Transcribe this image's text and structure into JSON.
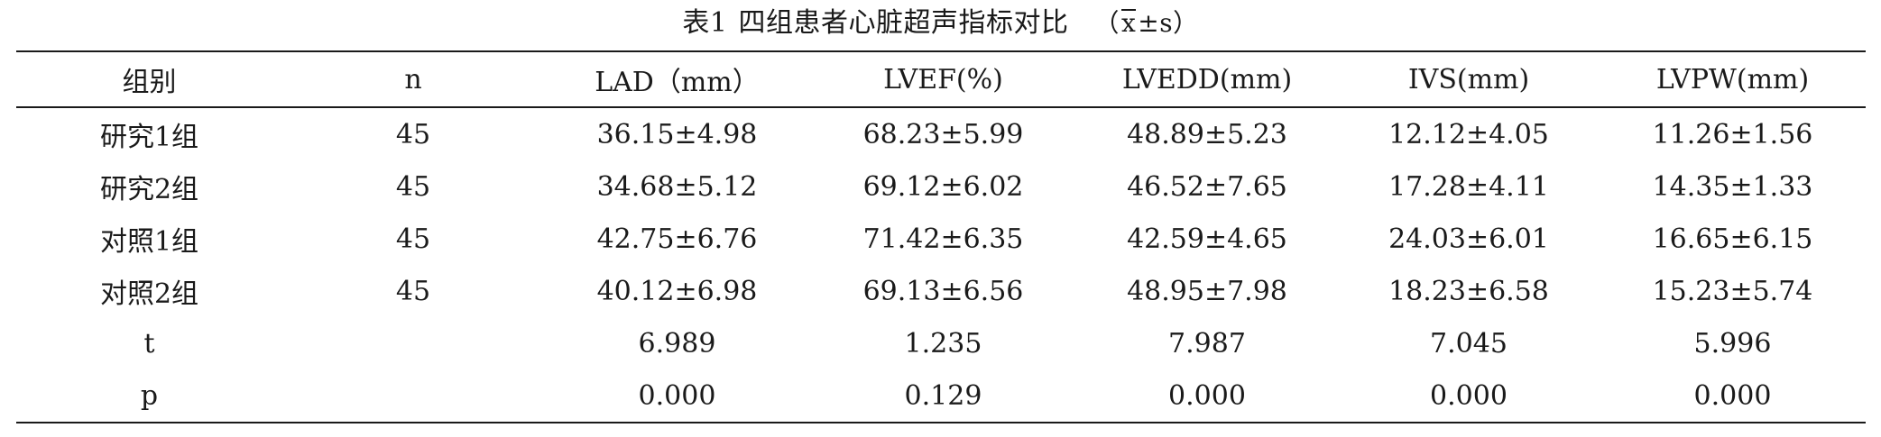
{
  "caption": {
    "label": "表1",
    "title": "四组患者心脏超声指标对比",
    "open_paren": "（",
    "xbar": "x",
    "pm": "±s",
    "close_paren": "）"
  },
  "table": {
    "headers": [
      "组别",
      "n",
      "LAD（mm）",
      "LVEF(%)",
      "LVEDD(mm)",
      "IVS(mm)",
      "LVPW(mm)"
    ],
    "rows": [
      [
        "研究1组",
        "45",
        "36.15±4.98",
        "68.23±5.99",
        "48.89±5.23",
        "12.12±4.05",
        "11.26±1.56"
      ],
      [
        "研究2组",
        "45",
        "34.68±5.12",
        "69.12±6.02",
        "46.52±7.65",
        "17.28±4.11",
        "14.35±1.33"
      ],
      [
        "对照1组",
        "45",
        "42.75±6.76",
        "71.42±6.35",
        "42.59±4.65",
        "24.03±6.01",
        "16.65±6.15"
      ],
      [
        "对照2组",
        "45",
        "40.12±6.98",
        "69.13±6.56",
        "48.95±7.98",
        "18.23±6.58",
        "15.23±5.74"
      ],
      [
        "t",
        "",
        "6.989",
        "1.235",
        "7.987",
        "7.045",
        "5.996"
      ],
      [
        "p",
        "",
        "0.000",
        "0.129",
        "0.000",
        "0.000",
        "0.000"
      ]
    ]
  }
}
